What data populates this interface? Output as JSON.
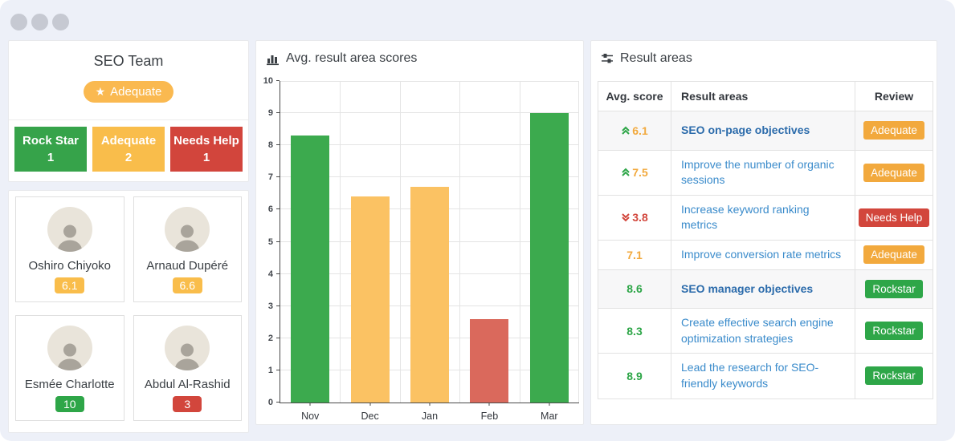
{
  "colors": {
    "green": "#2ea648",
    "orange": "#f2a93d",
    "red": "#d2463c",
    "bar_green": "#3caa4e",
    "bar_orange": "#fbc263",
    "bar_red": "#da695c",
    "pill_orange": "#fab950",
    "stat_green": "#36a34a",
    "stat_orange": "#f9bd4b",
    "stat_red": "#d2453c"
  },
  "team_panel": {
    "title": "SEO Team",
    "badge": {
      "icon": "star-icon",
      "label": "Adequate"
    },
    "stats": [
      {
        "label": "Rock Star",
        "count": "1",
        "color_key": "stat_green"
      },
      {
        "label": "Adequate",
        "count": "2",
        "color_key": "stat_orange"
      },
      {
        "label": "Needs Help",
        "count": "1",
        "color_key": "stat_red"
      }
    ],
    "members": [
      {
        "name": "Oshiro Chiyoko",
        "score": "6.1",
        "score_color_key": "stat_orange"
      },
      {
        "name": "Arnaud Dupéré",
        "score": "6.6",
        "score_color_key": "stat_orange"
      },
      {
        "name": "Esmée Charlotte",
        "score": "10",
        "score_color_key": "green"
      },
      {
        "name": "Abdul Al-Rashid",
        "score": "3",
        "score_color_key": "red"
      }
    ]
  },
  "chart_panel": {
    "icon": "bar-chart-icon",
    "title": "Avg. result area scores"
  },
  "chart_data": {
    "type": "bar",
    "title": "Avg. result area scores",
    "categories": [
      "Nov",
      "Dec",
      "Jan",
      "Feb",
      "Mar"
    ],
    "values": [
      8.3,
      6.4,
      6.7,
      2.6,
      9.0
    ],
    "bar_color_keys": [
      "bar_green",
      "bar_orange",
      "bar_orange",
      "bar_red",
      "bar_green"
    ],
    "xlabel": "",
    "ylabel": "",
    "ylim": [
      0,
      10
    ],
    "yticks": [
      0,
      1,
      2,
      3,
      4,
      5,
      6,
      7,
      8,
      9,
      10
    ],
    "grid": true,
    "legend": false
  },
  "result_panel": {
    "icon": "sliders-icon",
    "title": "Result areas",
    "table": {
      "headers": [
        "Avg. score",
        "Result areas",
        "Review"
      ],
      "rows": [
        {
          "score": "6.1",
          "trend": "up",
          "score_color_key": "orange",
          "name": "SEO on-page objectives",
          "bold": true,
          "highlight": true,
          "review": "Adequate",
          "review_color_key": "orange"
        },
        {
          "score": "7.5",
          "trend": "up",
          "score_color_key": "orange",
          "name": "Improve the number of organic sessions",
          "bold": false,
          "highlight": false,
          "review": "Adequate",
          "review_color_key": "orange"
        },
        {
          "score": "3.8",
          "trend": "down",
          "score_color_key": "red",
          "name": "Increase keyword ranking metrics",
          "bold": false,
          "highlight": false,
          "review": "Needs Help",
          "review_color_key": "red"
        },
        {
          "score": "7.1",
          "trend": "none",
          "score_color_key": "orange",
          "name": "Improve conversion rate metrics",
          "bold": false,
          "highlight": false,
          "review": "Adequate",
          "review_color_key": "orange"
        },
        {
          "score": "8.6",
          "trend": "none",
          "score_color_key": "green",
          "name": "SEO manager objectives",
          "bold": true,
          "highlight": true,
          "review": "Rockstar",
          "review_color_key": "green"
        },
        {
          "score": "8.3",
          "trend": "none",
          "score_color_key": "green",
          "name": "Create effective search engine optimization strategies",
          "bold": false,
          "highlight": false,
          "review": "Rockstar",
          "review_color_key": "green"
        },
        {
          "score": "8.9",
          "trend": "none",
          "score_color_key": "green",
          "name": "Lead the research for SEO-friendly keywords",
          "bold": false,
          "highlight": false,
          "review": "Rockstar",
          "review_color_key": "green"
        }
      ]
    }
  }
}
